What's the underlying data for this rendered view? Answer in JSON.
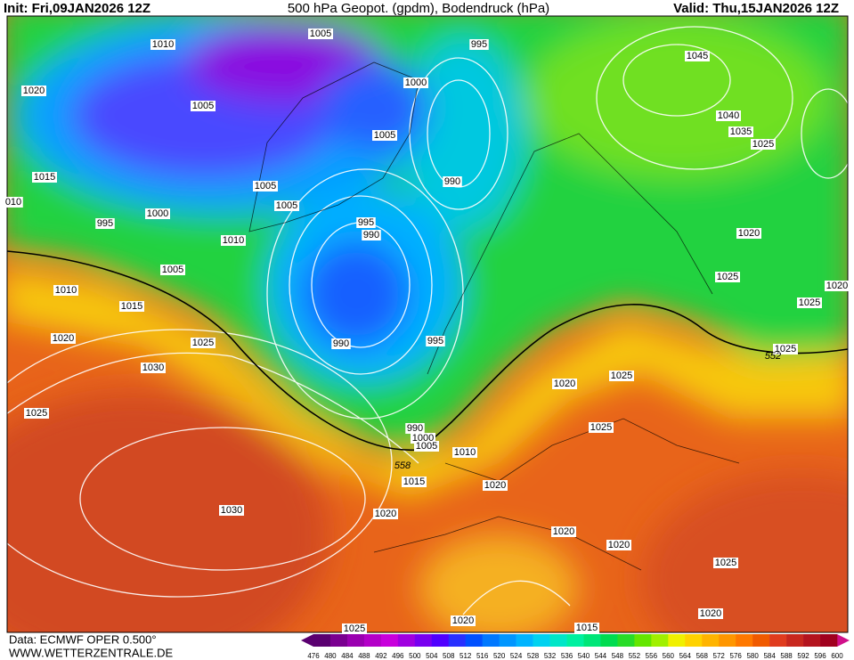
{
  "header": {
    "init": "Init: Fri,09JAN2026 12Z",
    "title": "500 hPa Geopot. (gpdm), Bodendruck (hPa)",
    "valid": "Valid: Thu,15JAN2026 12Z"
  },
  "footer": {
    "source": "Data: ECMWF OPER 0.500°",
    "website": "WWW.WETTERZENTRALE.DE"
  },
  "colorbar": {
    "labels": [
      476,
      480,
      484,
      488,
      492,
      496,
      500,
      504,
      508,
      512,
      516,
      520,
      524,
      528,
      532,
      536,
      540,
      544,
      548,
      552,
      556,
      560,
      564,
      568,
      572,
      576,
      580,
      584,
      588,
      592,
      596,
      600
    ],
    "colors": [
      "#5a0070",
      "#7a0090",
      "#9a00b0",
      "#b400c8",
      "#c800dc",
      "#a000e0",
      "#7800f0",
      "#5000ff",
      "#2830ff",
      "#0050ff",
      "#0078ff",
      "#0096ff",
      "#00b4ff",
      "#00d2f0",
      "#00e6c8",
      "#00f0a0",
      "#00e678",
      "#00dc50",
      "#28dc28",
      "#64e600",
      "#a0f000",
      "#f0f000",
      "#ffd200",
      "#ffb400",
      "#ff9600",
      "#ff7800",
      "#f05a00",
      "#e03c1e",
      "#c8281e",
      "#b4141e",
      "#a0001e"
    ]
  },
  "isobar_labels": [
    "1005",
    "995",
    "1010",
    "1045",
    "1020",
    "1000",
    "1005",
    "1040",
    "1005",
    "1035",
    "1025",
    "1015",
    "990",
    "1005",
    "010",
    "1005",
    "1000",
    "995",
    "995",
    "990",
    "1010",
    "1020",
    "1005",
    "1025",
    "1010",
    "1020",
    "1015",
    "1025",
    "990",
    "1020",
    "1025",
    "995",
    "1025",
    "1030",
    "1025",
    "1020",
    "1025",
    "990",
    "1000",
    "1005",
    "1025",
    "1010",
    "1015",
    "1020",
    "1030",
    "1020",
    "1020",
    "1020",
    "1025",
    "1020",
    "1020",
    "1025",
    "1015"
  ],
  "contour_labels": [
    "558",
    "552"
  ]
}
